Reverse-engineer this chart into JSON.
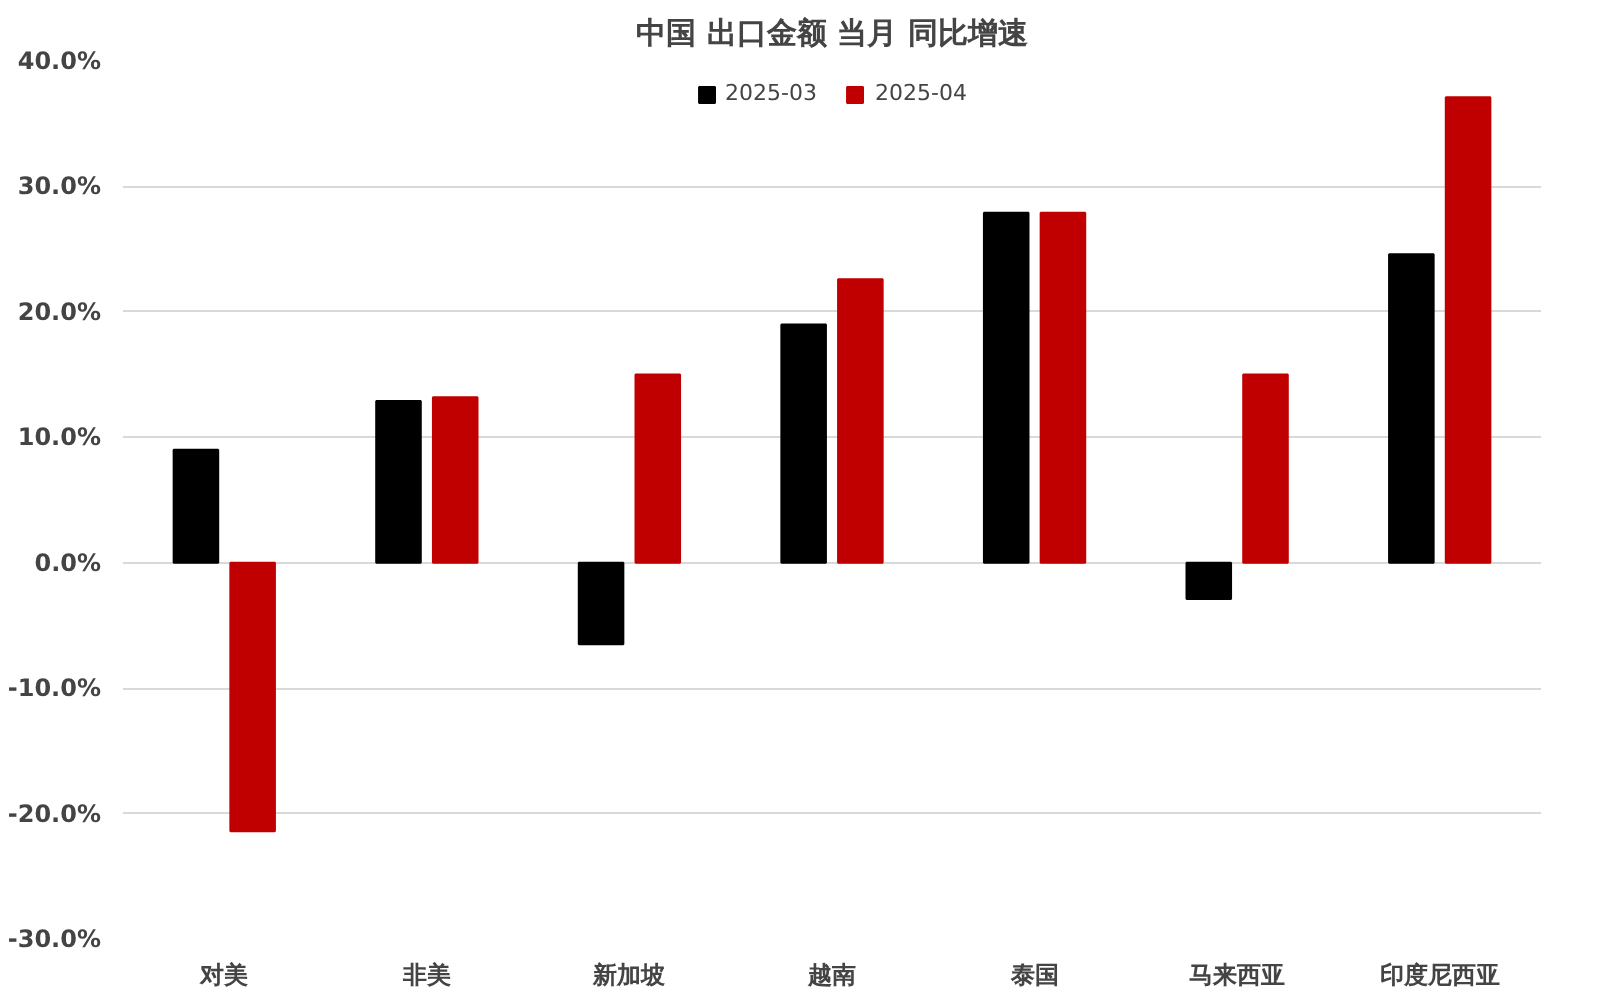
{
  "chart_data": {
    "type": "bar",
    "title": "中国 出口金额 当月 同比增速",
    "categories": [
      "对美",
      "非美",
      "新加坡",
      "越南",
      "泰国",
      "马来西亚",
      "印度尼西亚"
    ],
    "series": [
      {
        "name": "2025-03",
        "color": "#000000",
        "values": [
          9.0,
          12.9,
          -6.5,
          19.0,
          27.9,
          -2.9,
          24.6
        ]
      },
      {
        "name": "2025-04",
        "color": "#c00000",
        "values": [
          -21.4,
          13.2,
          15.0,
          22.6,
          27.9,
          15.0,
          37.1
        ]
      }
    ],
    "ylim": [
      -30,
      40
    ],
    "yticks": [
      {
        "value": -30,
        "label": "-30.0%"
      },
      {
        "value": -20,
        "label": "-20.0%"
      },
      {
        "value": -10,
        "label": "-10.0%"
      },
      {
        "value": 0,
        "label": "0.0%"
      },
      {
        "value": 10,
        "label": "10.0%"
      },
      {
        "value": 20,
        "label": "20.0%"
      },
      {
        "value": 30,
        "label": "30.0%"
      },
      {
        "value": 40,
        "label": "40.0%"
      }
    ],
    "grid": "y",
    "legend": "top"
  }
}
